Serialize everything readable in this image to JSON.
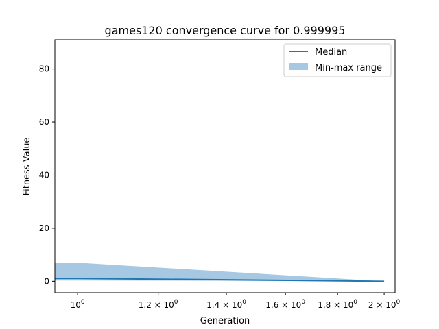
{
  "chart_data": {
    "type": "area",
    "title": "games120 convergence curve for 0.999995",
    "xlabel": "Generation",
    "ylabel": "Fitness Value",
    "x_scale": "log",
    "xlim": [
      0.95,
      2.05
    ],
    "ylim": [
      -4.3,
      91
    ],
    "x_ticks": [
      {
        "value": 1.0,
        "label_base": "10",
        "label_exp": "0",
        "label_prefix": ""
      },
      {
        "value": 1.2,
        "label_base": "10",
        "label_exp": "0",
        "label_prefix": "1.2 × "
      },
      {
        "value": 1.4,
        "label_base": "10",
        "label_exp": "0",
        "label_prefix": "1.4 × "
      },
      {
        "value": 1.6,
        "label_base": "10",
        "label_exp": "0",
        "label_prefix": "1.6 × "
      },
      {
        "value": 1.8,
        "label_base": "10",
        "label_exp": "0",
        "label_prefix": "1.8 × "
      },
      {
        "value": 2.0,
        "label_base": "10",
        "label_exp": "0",
        "label_prefix": "2 × "
      }
    ],
    "y_ticks": [
      0,
      20,
      40,
      60,
      80
    ],
    "grid": false,
    "legend_position": "top-right",
    "series": [
      {
        "name": "Median",
        "kind": "line",
        "color": "#1f77b4",
        "x": [
          0.95,
          1,
          2
        ],
        "y": [
          1.1,
          1.1,
          0
        ]
      },
      {
        "name": "Min-max range",
        "kind": "band",
        "color": "#a6c8e2",
        "x": [
          0.95,
          1,
          2
        ],
        "y_min": [
          0.3,
          0.3,
          0
        ],
        "y_max": [
          7,
          7,
          0
        ]
      }
    ]
  }
}
